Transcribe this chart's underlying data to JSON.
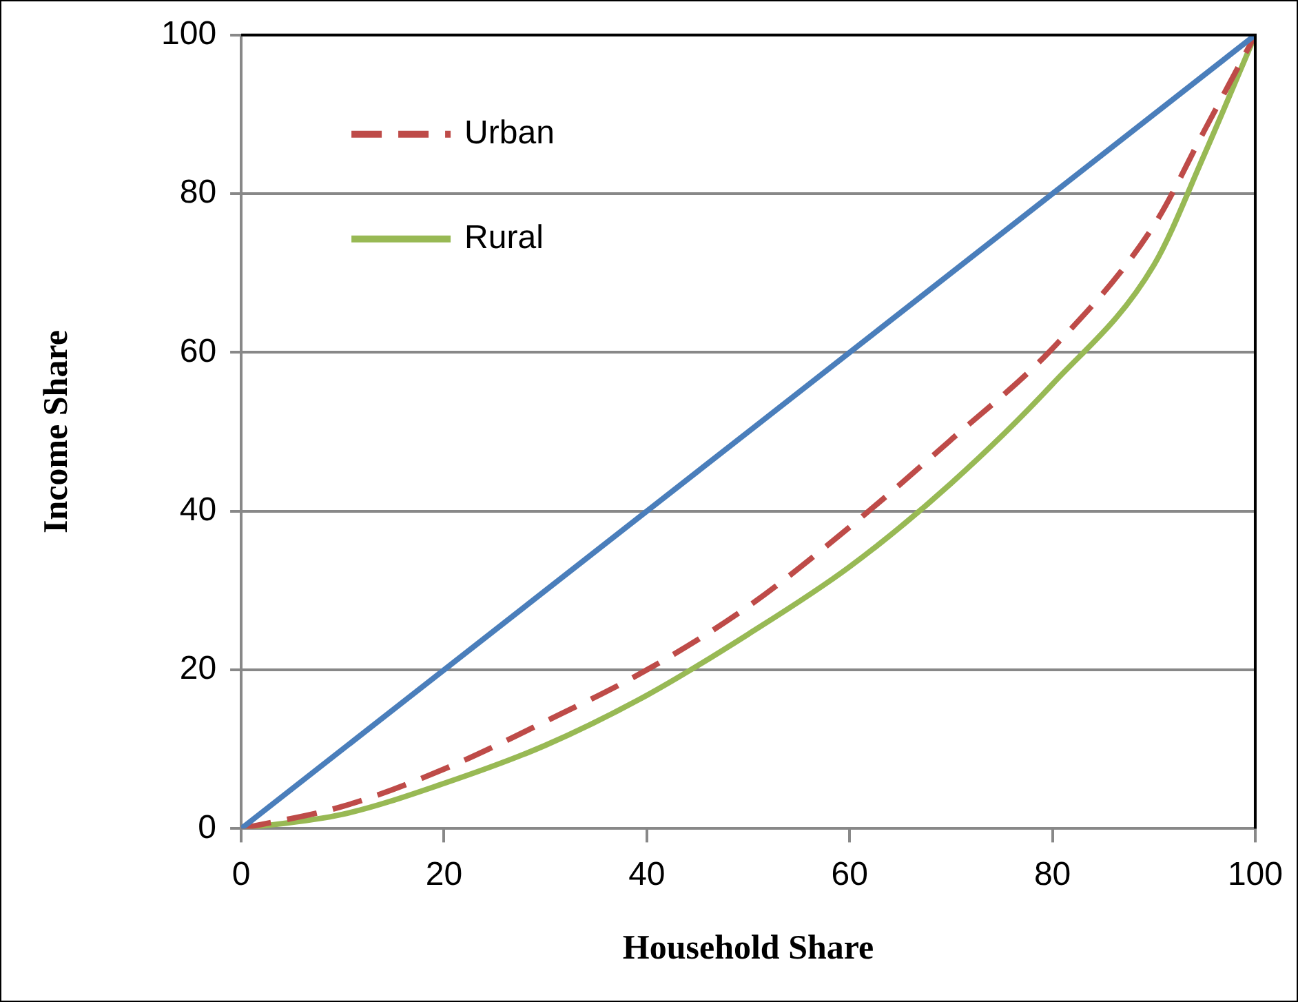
{
  "chart_data": {
    "type": "line",
    "xlabel": "Household Share",
    "ylabel": "Income Share",
    "xlim": [
      0,
      100
    ],
    "ylim": [
      0,
      100
    ],
    "xticks": [
      0,
      20,
      40,
      60,
      80,
      100
    ],
    "yticks": [
      0,
      20,
      40,
      60,
      80,
      100
    ],
    "grid": "y",
    "legend": "top left",
    "marker": "none",
    "series": [
      {
        "color": "#4a7ebb",
        "line_style": "solid",
        "x": [
          0,
          100
        ],
        "values": [
          0,
          100
        ]
      },
      {
        "name": "Urban",
        "color": "#be4b48",
        "line_style": "dashed",
        "x": [
          0,
          10,
          20,
          30,
          40,
          50,
          60,
          70,
          80,
          90,
          95,
          100
        ],
        "values": [
          0,
          2.8,
          7.5,
          13.5,
          20,
          28,
          38,
          49,
          60.5,
          76,
          88,
          100
        ]
      },
      {
        "name": "Rural",
        "color": "#98b954",
        "line_style": "solid",
        "x": [
          0,
          10,
          20,
          30,
          40,
          50,
          60,
          70,
          80,
          90,
          95,
          100
        ],
        "values": [
          0,
          1.8,
          5.7,
          10.5,
          16.8,
          24.5,
          33,
          43.5,
          56,
          71,
          85,
          100
        ]
      }
    ]
  }
}
